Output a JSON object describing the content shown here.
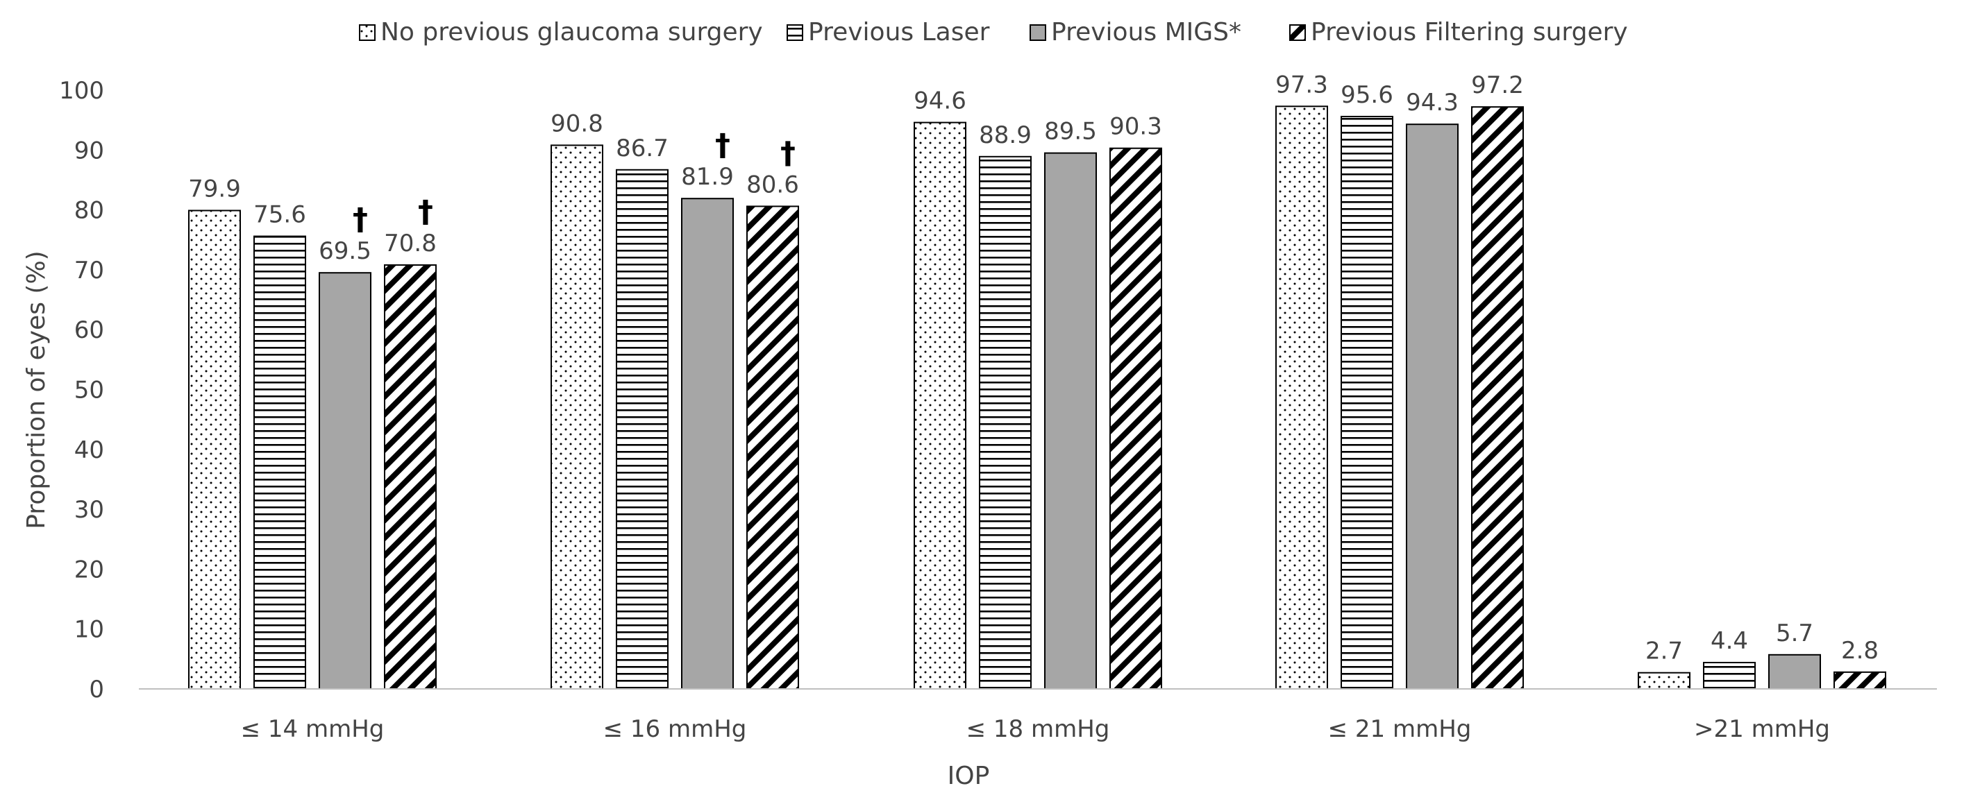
{
  "chart_data": {
    "type": "bar",
    "title": "",
    "xlabel": "IOP",
    "ylabel": "Proportion of eyes (%)",
    "ylim": [
      0,
      100
    ],
    "yticks": [
      0,
      10,
      20,
      30,
      40,
      50,
      60,
      70,
      80,
      90,
      100
    ],
    "grid": false,
    "legend_position": "top",
    "categories": [
      "≤ 14 mmHg",
      "≤ 16 mmHg",
      "≤ 18 mmHg",
      "≤ 21 mmHg",
      ">21 mmHg"
    ],
    "series": [
      {
        "name": "No previous glaucoma surgery",
        "pattern": "dots",
        "values": [
          79.9,
          90.8,
          94.6,
          97.3,
          2.7
        ],
        "value_labels": [
          "79.9",
          "90.8",
          "94.6",
          "97.3",
          "2.7"
        ],
        "markers": [
          "",
          "",
          "",
          "",
          ""
        ]
      },
      {
        "name": "Previous Laser",
        "pattern": "horizontal-lines",
        "values": [
          75.6,
          86.7,
          88.9,
          95.6,
          4.4
        ],
        "value_labels": [
          "75.6",
          "86.7",
          "88.9",
          "95.6",
          "4.4"
        ],
        "markers": [
          "",
          "",
          "",
          "",
          ""
        ]
      },
      {
        "name": "Previous MIGS*",
        "pattern": "solid-gray",
        "values": [
          69.5,
          81.9,
          89.5,
          94.3,
          5.7
        ],
        "value_labels": [
          "69.5",
          "81.9",
          "89.5",
          "94.3",
          "5.7"
        ],
        "markers": [
          "†",
          "†",
          "",
          "",
          ""
        ]
      },
      {
        "name": "Previous Filtering surgery",
        "pattern": "diagonal-stripes",
        "values": [
          70.8,
          80.6,
          90.3,
          97.2,
          2.8
        ],
        "value_labels": [
          "70.8",
          "80.6",
          "90.3",
          "97.2",
          "2.8"
        ],
        "markers": [
          "†",
          "†",
          "",
          "",
          ""
        ]
      }
    ],
    "colors": {
      "bar_outline": "#000000",
      "solid_fill": "#a6a6a6",
      "text": "#444444",
      "axis": "#bfbfbf"
    }
  }
}
